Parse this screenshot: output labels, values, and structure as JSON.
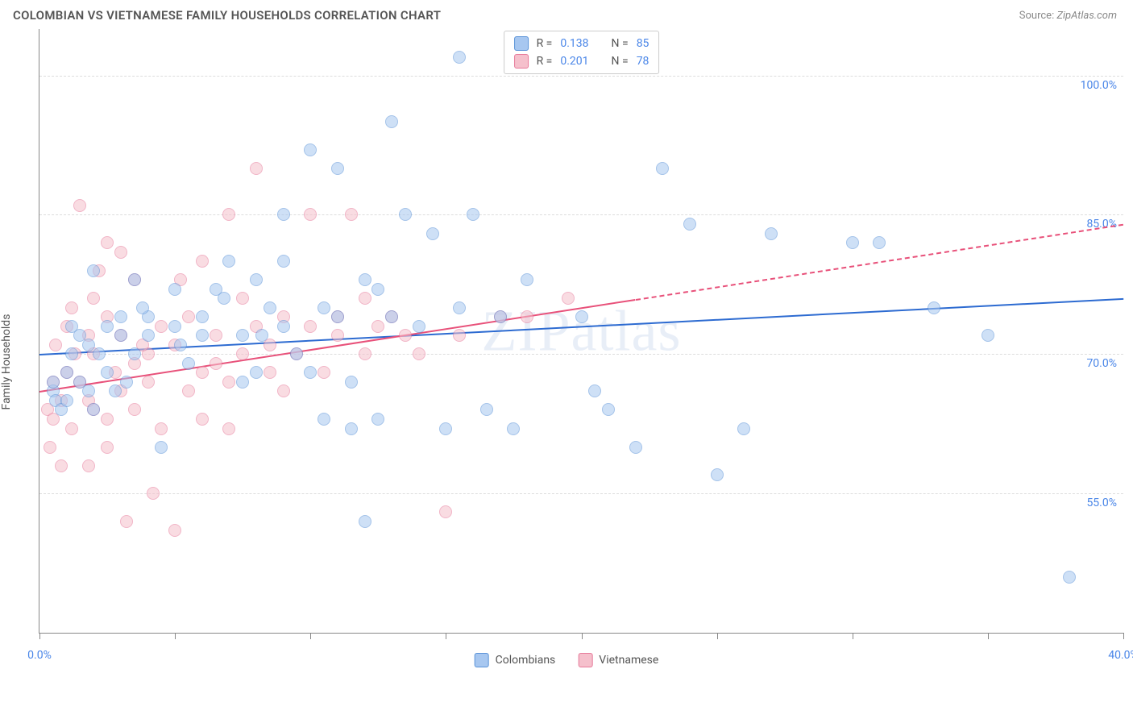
{
  "header": {
    "title": "COLOMBIAN VS VIETNAMESE FAMILY HOUSEHOLDS CORRELATION CHART",
    "source_prefix": "Source: ",
    "source_name": "ZipAtlas.com"
  },
  "ylabel": "Family Households",
  "watermark": "ZIPatlas",
  "chart": {
    "type": "scatter",
    "xlim": [
      0,
      40
    ],
    "ylim": [
      40,
      105
    ],
    "background_color": "#ffffff",
    "grid_color": "#dddddd",
    "axis_color": "#888888",
    "yticks": [
      55,
      70,
      85,
      100
    ],
    "ytick_labels": [
      "55.0%",
      "70.0%",
      "85.0%",
      "100.0%"
    ],
    "xticks": [
      0,
      5,
      10,
      15,
      20,
      25,
      30,
      35,
      40
    ],
    "xtick_labels": {
      "0": "0.0%",
      "40": "40.0%"
    },
    "ytick_label_color": "#4a86e8",
    "xtick_label_color": "#4a86e8",
    "marker_radius": 8,
    "marker_opacity": 0.55,
    "series": [
      {
        "name": "Colombians",
        "color_fill": "#a7c7f0",
        "color_stroke": "#5b93d8",
        "R": "0.138",
        "N": "85",
        "trend_color": "#2d6bd1",
        "trend": {
          "x0": 0,
          "y0": 70,
          "x1": 40,
          "y1": 76,
          "dash_after_x": 40
        },
        "points": [
          [
            0.5,
            66
          ],
          [
            0.5,
            67
          ],
          [
            0.6,
            65
          ],
          [
            0.8,
            64
          ],
          [
            1,
            68
          ],
          [
            1,
            65
          ],
          [
            1.2,
            73
          ],
          [
            1.2,
            70
          ],
          [
            1.5,
            67
          ],
          [
            1.5,
            72
          ],
          [
            1.8,
            66
          ],
          [
            2,
            79
          ],
          [
            2,
            64
          ],
          [
            2.2,
            70
          ],
          [
            2.5,
            73
          ],
          [
            2.5,
            68
          ],
          [
            3,
            74
          ],
          [
            3,
            72
          ],
          [
            3.2,
            67
          ],
          [
            3.5,
            70
          ],
          [
            3.5,
            78
          ],
          [
            4,
            74
          ],
          [
            4,
            72
          ],
          [
            4.5,
            60
          ],
          [
            5,
            73
          ],
          [
            5,
            77
          ],
          [
            5.5,
            69
          ],
          [
            6,
            74
          ],
          [
            6,
            72
          ],
          [
            6.5,
            77
          ],
          [
            7,
            80
          ],
          [
            7.5,
            72
          ],
          [
            7.5,
            67
          ],
          [
            8,
            78
          ],
          [
            8,
            68
          ],
          [
            8.5,
            75
          ],
          [
            9,
            85
          ],
          [
            9,
            73
          ],
          [
            9,
            80
          ],
          [
            9.5,
            70
          ],
          [
            10,
            92
          ],
          [
            10,
            68
          ],
          [
            10.5,
            75
          ],
          [
            10.5,
            63
          ],
          [
            11,
            90
          ],
          [
            11,
            74
          ],
          [
            11.5,
            62
          ],
          [
            11.5,
            67
          ],
          [
            12,
            78
          ],
          [
            12,
            52
          ],
          [
            12.5,
            77
          ],
          [
            12.5,
            63
          ],
          [
            13,
            95
          ],
          [
            13,
            74
          ],
          [
            13.5,
            85
          ],
          [
            14,
            73
          ],
          [
            14.5,
            83
          ],
          [
            15,
            62
          ],
          [
            15.5,
            75
          ],
          [
            15.5,
            102
          ],
          [
            16,
            85
          ],
          [
            16.5,
            64
          ],
          [
            17,
            74
          ],
          [
            17.5,
            62
          ],
          [
            18,
            78
          ],
          [
            20,
            74
          ],
          [
            20.5,
            66
          ],
          [
            21,
            64
          ],
          [
            22,
            60
          ],
          [
            23,
            90
          ],
          [
            24,
            84
          ],
          [
            25,
            57
          ],
          [
            26,
            62
          ],
          [
            27,
            83
          ],
          [
            30,
            82
          ],
          [
            31,
            82
          ],
          [
            33,
            75
          ],
          [
            35,
            72
          ],
          [
            38,
            46
          ],
          [
            1.8,
            71
          ],
          [
            2.8,
            66
          ],
          [
            3.8,
            75
          ],
          [
            5.2,
            71
          ],
          [
            6.8,
            76
          ],
          [
            8.2,
            72
          ]
        ]
      },
      {
        "name": "Vietnamese",
        "color_fill": "#f5c0cc",
        "color_stroke": "#e77a9a",
        "R": "0.201",
        "N": "78",
        "trend_color": "#e8517a",
        "trend": {
          "x0": 0,
          "y0": 66,
          "x1": 22,
          "y1": 77,
          "dash_after_x": 22,
          "x2": 40,
          "y2": 84
        },
        "points": [
          [
            0.3,
            64
          ],
          [
            0.4,
            60
          ],
          [
            0.5,
            67
          ],
          [
            0.5,
            63
          ],
          [
            0.6,
            71
          ],
          [
            0.8,
            58
          ],
          [
            0.8,
            65
          ],
          [
            1,
            73
          ],
          [
            1,
            68
          ],
          [
            1.2,
            62
          ],
          [
            1.2,
            75
          ],
          [
            1.5,
            86
          ],
          [
            1.5,
            67
          ],
          [
            1.8,
            65
          ],
          [
            1.8,
            72
          ],
          [
            1.8,
            58
          ],
          [
            2,
            76
          ],
          [
            2,
            64
          ],
          [
            2,
            70
          ],
          [
            2.2,
            79
          ],
          [
            2.5,
            63
          ],
          [
            2.5,
            82
          ],
          [
            2.5,
            60
          ],
          [
            2.5,
            74
          ],
          [
            3,
            66
          ],
          [
            3,
            72
          ],
          [
            3,
            81
          ],
          [
            3.2,
            52
          ],
          [
            3.5,
            69
          ],
          [
            3.5,
            78
          ],
          [
            3.5,
            64
          ],
          [
            4,
            70
          ],
          [
            4,
            67
          ],
          [
            4.2,
            55
          ],
          [
            4.5,
            73
          ],
          [
            4.5,
            62
          ],
          [
            5,
            51
          ],
          [
            5,
            71
          ],
          [
            5.2,
            78
          ],
          [
            5.5,
            66
          ],
          [
            5.5,
            74
          ],
          [
            6,
            68
          ],
          [
            6,
            80
          ],
          [
            6,
            63
          ],
          [
            6.5,
            72
          ],
          [
            6.5,
            69
          ],
          [
            7,
            67
          ],
          [
            7,
            85
          ],
          [
            7,
            62
          ],
          [
            7.5,
            70
          ],
          [
            7.5,
            76
          ],
          [
            8,
            73
          ],
          [
            8,
            90
          ],
          [
            8.5,
            68
          ],
          [
            8.5,
            71
          ],
          [
            9,
            74
          ],
          [
            9,
            66
          ],
          [
            9.5,
            70
          ],
          [
            10,
            73
          ],
          [
            10,
            85
          ],
          [
            10.5,
            68
          ],
          [
            11,
            72
          ],
          [
            11,
            74
          ],
          [
            11.5,
            85
          ],
          [
            12,
            70
          ],
          [
            12,
            76
          ],
          [
            12.5,
            73
          ],
          [
            13,
            74
          ],
          [
            13.5,
            72
          ],
          [
            14,
            70
          ],
          [
            15,
            53
          ],
          [
            15.5,
            72
          ],
          [
            17,
            74
          ],
          [
            18,
            74
          ],
          [
            19.5,
            76
          ],
          [
            2.8,
            68
          ],
          [
            3.8,
            71
          ],
          [
            1.3,
            70
          ]
        ]
      }
    ]
  },
  "legend": {
    "r_label": "R =",
    "n_label": "N ="
  }
}
